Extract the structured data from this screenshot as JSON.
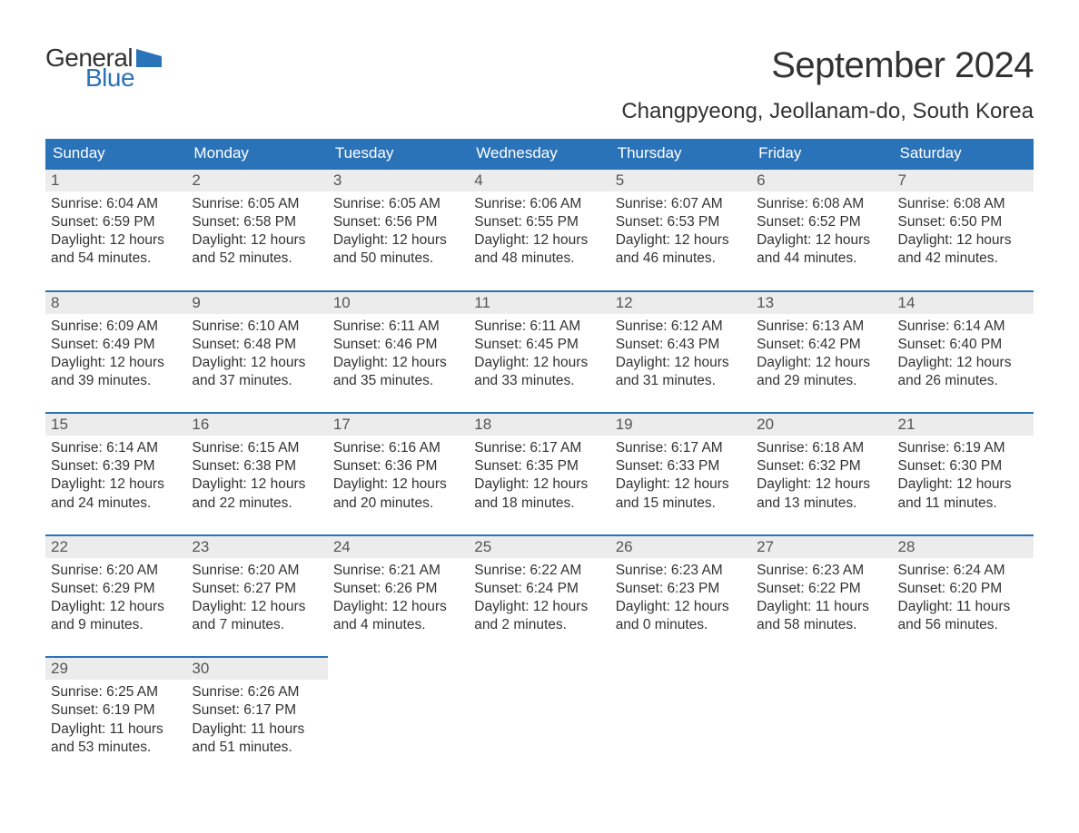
{
  "logo": {
    "text_general": "General",
    "text_blue": "Blue",
    "flag_color": "#2b73b8"
  },
  "title": "September 2024",
  "location": "Changpyeong, Jeollanam-do, South Korea",
  "colors": {
    "header_bg": "#2b73b8",
    "header_text": "#ffffff",
    "daynum_bg": "#ececec",
    "daynum_border": "#2b73b8",
    "body_text": "#333333",
    "background": "#ffffff"
  },
  "typography": {
    "title_fontsize": 40,
    "location_fontsize": 24,
    "weekday_fontsize": 17,
    "daynum_fontsize": 17,
    "body_fontsize": 15.5
  },
  "weekdays": [
    "Sunday",
    "Monday",
    "Tuesday",
    "Wednesday",
    "Thursday",
    "Friday",
    "Saturday"
  ],
  "labels": {
    "sunrise": "Sunrise:",
    "sunset": "Sunset:",
    "daylight": "Daylight:"
  },
  "weeks": [
    [
      {
        "num": "1",
        "sunrise": "6:04 AM",
        "sunset": "6:59 PM",
        "daylight_h": "12",
        "daylight_m": "54"
      },
      {
        "num": "2",
        "sunrise": "6:05 AM",
        "sunset": "6:58 PM",
        "daylight_h": "12",
        "daylight_m": "52"
      },
      {
        "num": "3",
        "sunrise": "6:05 AM",
        "sunset": "6:56 PM",
        "daylight_h": "12",
        "daylight_m": "50"
      },
      {
        "num": "4",
        "sunrise": "6:06 AM",
        "sunset": "6:55 PM",
        "daylight_h": "12",
        "daylight_m": "48"
      },
      {
        "num": "5",
        "sunrise": "6:07 AM",
        "sunset": "6:53 PM",
        "daylight_h": "12",
        "daylight_m": "46"
      },
      {
        "num": "6",
        "sunrise": "6:08 AM",
        "sunset": "6:52 PM",
        "daylight_h": "12",
        "daylight_m": "44"
      },
      {
        "num": "7",
        "sunrise": "6:08 AM",
        "sunset": "6:50 PM",
        "daylight_h": "12",
        "daylight_m": "42"
      }
    ],
    [
      {
        "num": "8",
        "sunrise": "6:09 AM",
        "sunset": "6:49 PM",
        "daylight_h": "12",
        "daylight_m": "39"
      },
      {
        "num": "9",
        "sunrise": "6:10 AM",
        "sunset": "6:48 PM",
        "daylight_h": "12",
        "daylight_m": "37"
      },
      {
        "num": "10",
        "sunrise": "6:11 AM",
        "sunset": "6:46 PM",
        "daylight_h": "12",
        "daylight_m": "35"
      },
      {
        "num": "11",
        "sunrise": "6:11 AM",
        "sunset": "6:45 PM",
        "daylight_h": "12",
        "daylight_m": "33"
      },
      {
        "num": "12",
        "sunrise": "6:12 AM",
        "sunset": "6:43 PM",
        "daylight_h": "12",
        "daylight_m": "31"
      },
      {
        "num": "13",
        "sunrise": "6:13 AM",
        "sunset": "6:42 PM",
        "daylight_h": "12",
        "daylight_m": "29"
      },
      {
        "num": "14",
        "sunrise": "6:14 AM",
        "sunset": "6:40 PM",
        "daylight_h": "12",
        "daylight_m": "26"
      }
    ],
    [
      {
        "num": "15",
        "sunrise": "6:14 AM",
        "sunset": "6:39 PM",
        "daylight_h": "12",
        "daylight_m": "24"
      },
      {
        "num": "16",
        "sunrise": "6:15 AM",
        "sunset": "6:38 PM",
        "daylight_h": "12",
        "daylight_m": "22"
      },
      {
        "num": "17",
        "sunrise": "6:16 AM",
        "sunset": "6:36 PM",
        "daylight_h": "12",
        "daylight_m": "20"
      },
      {
        "num": "18",
        "sunrise": "6:17 AM",
        "sunset": "6:35 PM",
        "daylight_h": "12",
        "daylight_m": "18"
      },
      {
        "num": "19",
        "sunrise": "6:17 AM",
        "sunset": "6:33 PM",
        "daylight_h": "12",
        "daylight_m": "15"
      },
      {
        "num": "20",
        "sunrise": "6:18 AM",
        "sunset": "6:32 PM",
        "daylight_h": "12",
        "daylight_m": "13"
      },
      {
        "num": "21",
        "sunrise": "6:19 AM",
        "sunset": "6:30 PM",
        "daylight_h": "12",
        "daylight_m": "11"
      }
    ],
    [
      {
        "num": "22",
        "sunrise": "6:20 AM",
        "sunset": "6:29 PM",
        "daylight_h": "12",
        "daylight_m": "9"
      },
      {
        "num": "23",
        "sunrise": "6:20 AM",
        "sunset": "6:27 PM",
        "daylight_h": "12",
        "daylight_m": "7"
      },
      {
        "num": "24",
        "sunrise": "6:21 AM",
        "sunset": "6:26 PM",
        "daylight_h": "12",
        "daylight_m": "4"
      },
      {
        "num": "25",
        "sunrise": "6:22 AM",
        "sunset": "6:24 PM",
        "daylight_h": "12",
        "daylight_m": "2"
      },
      {
        "num": "26",
        "sunrise": "6:23 AM",
        "sunset": "6:23 PM",
        "daylight_h": "12",
        "daylight_m": "0"
      },
      {
        "num": "27",
        "sunrise": "6:23 AM",
        "sunset": "6:22 PM",
        "daylight_h": "11",
        "daylight_m": "58"
      },
      {
        "num": "28",
        "sunrise": "6:24 AM",
        "sunset": "6:20 PM",
        "daylight_h": "11",
        "daylight_m": "56"
      }
    ],
    [
      {
        "num": "29",
        "sunrise": "6:25 AM",
        "sunset": "6:19 PM",
        "daylight_h": "11",
        "daylight_m": "53"
      },
      {
        "num": "30",
        "sunrise": "6:26 AM",
        "sunset": "6:17 PM",
        "daylight_h": "11",
        "daylight_m": "51"
      },
      null,
      null,
      null,
      null,
      null
    ]
  ]
}
